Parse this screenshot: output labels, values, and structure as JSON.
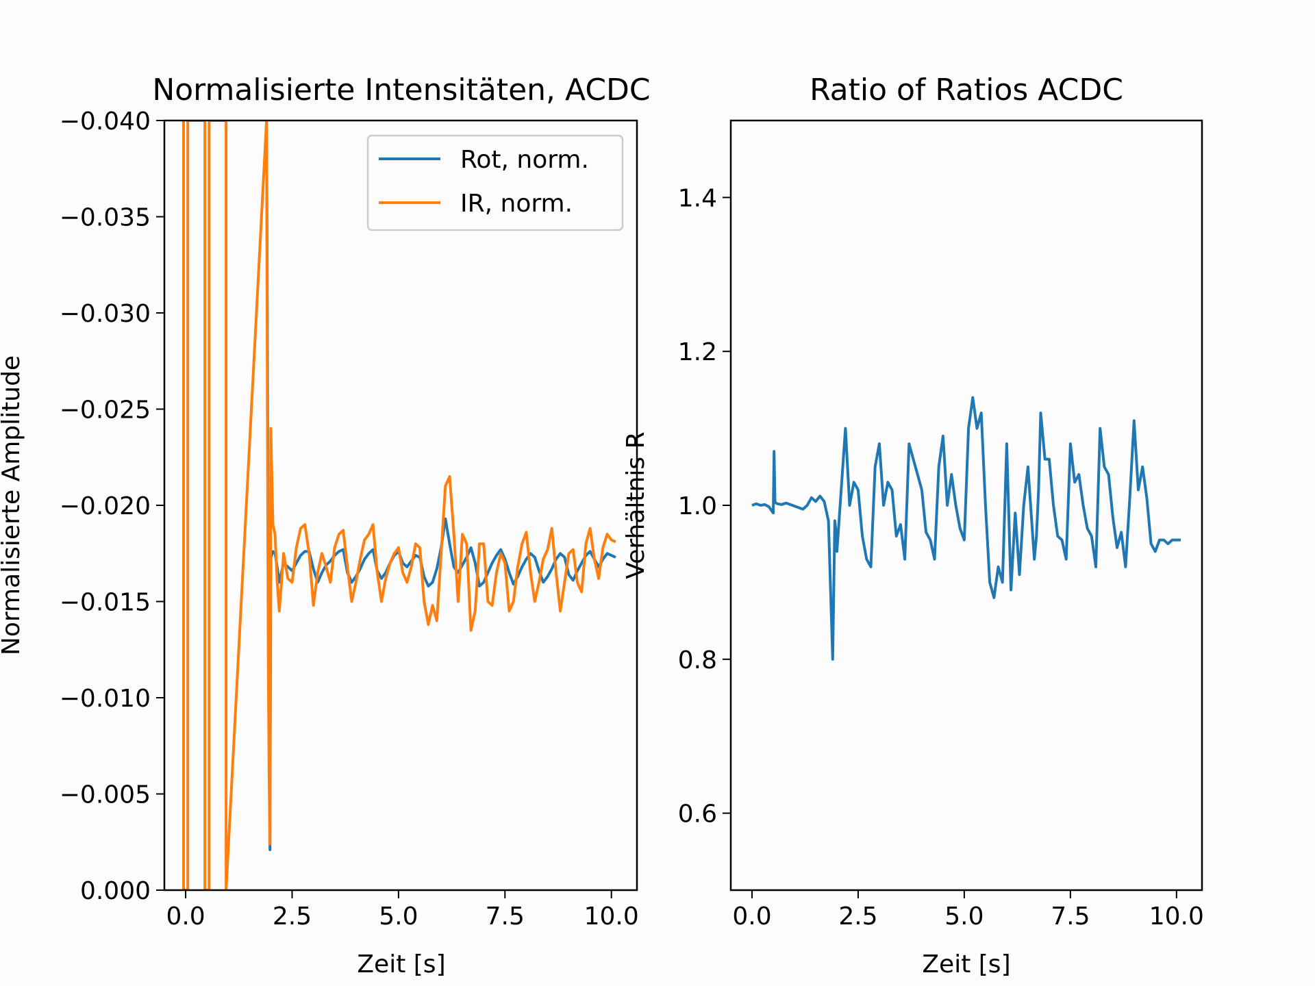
{
  "chart_data": [
    {
      "type": "line",
      "title": "Normalisierte Intensitäten, ACDC",
      "xlabel": "Zeit [s]",
      "ylabel": "Normalisierte Amplitude",
      "xlim": [
        -0.5,
        10.6
      ],
      "ylim": [
        0.0,
        -0.04
      ],
      "y_inverted": true,
      "grid": false,
      "legend": "top-right",
      "xticks": [
        0.0,
        2.5,
        5.0,
        7.5,
        10.0
      ],
      "xtick_labels": [
        "0.0",
        "2.5",
        "5.0",
        "7.5",
        "10.0"
      ],
      "yticks": [
        0.0,
        -0.005,
        -0.01,
        -0.015,
        -0.02,
        -0.025,
        -0.03,
        -0.035,
        -0.04
      ],
      "ytick_labels": [
        "0.000",
        "−0.005",
        "−0.010",
        "−0.015",
        "−0.020",
        "−0.025",
        "−0.030",
        "−0.035",
        "−0.040"
      ],
      "series": [
        {
          "name": "Rot, norm.",
          "color": "#1f77b4",
          "x": [
            1.9,
            1.92,
            1.94,
            1.96,
            1.98,
            2.0,
            2.05,
            2.1,
            2.15,
            2.2,
            2.3,
            2.4,
            2.5,
            2.6,
            2.7,
            2.8,
            2.9,
            3.0,
            3.1,
            3.2,
            3.3,
            3.4,
            3.5,
            3.6,
            3.7,
            3.8,
            3.9,
            4.0,
            4.1,
            4.2,
            4.3,
            4.4,
            4.5,
            4.6,
            4.7,
            4.8,
            4.9,
            5.0,
            5.1,
            5.2,
            5.3,
            5.4,
            5.5,
            5.6,
            5.7,
            5.8,
            5.9,
            6.0,
            6.1,
            6.2,
            6.3,
            6.4,
            6.5,
            6.6,
            6.7,
            6.8,
            6.9,
            7.0,
            7.1,
            7.2,
            7.3,
            7.4,
            7.5,
            7.6,
            7.7,
            7.8,
            7.9,
            8.0,
            8.1,
            8.2,
            8.3,
            8.4,
            8.5,
            8.6,
            8.7,
            8.8,
            8.9,
            9.0,
            9.1,
            9.2,
            9.3,
            9.4,
            9.5,
            9.6,
            9.7,
            9.8,
            9.9,
            10.0,
            10.1
          ],
          "values": [
            -0.0399,
            -0.03,
            -0.015,
            -0.008,
            -0.0021,
            -0.0173,
            -0.0176,
            -0.0175,
            -0.0168,
            -0.016,
            -0.017,
            -0.0168,
            -0.0166,
            -0.017,
            -0.0174,
            -0.0176,
            -0.0176,
            -0.0167,
            -0.016,
            -0.0165,
            -0.0169,
            -0.0171,
            -0.0174,
            -0.0176,
            -0.0177,
            -0.0165,
            -0.016,
            -0.0163,
            -0.0167,
            -0.0172,
            -0.0175,
            -0.0177,
            -0.0166,
            -0.0162,
            -0.0165,
            -0.017,
            -0.0174,
            -0.0176,
            -0.017,
            -0.0168,
            -0.0171,
            -0.0174,
            -0.0173,
            -0.0163,
            -0.0158,
            -0.016,
            -0.0167,
            -0.0178,
            -0.0193,
            -0.018,
            -0.0168,
            -0.0165,
            -0.0169,
            -0.0173,
            -0.0178,
            -0.017,
            -0.0158,
            -0.016,
            -0.0165,
            -0.017,
            -0.0174,
            -0.0177,
            -0.0172,
            -0.0165,
            -0.0159,
            -0.0163,
            -0.0168,
            -0.0172,
            -0.0175,
            -0.0173,
            -0.0166,
            -0.016,
            -0.0163,
            -0.0167,
            -0.0172,
            -0.0175,
            -0.0173,
            -0.0164,
            -0.0161,
            -0.0166,
            -0.017,
            -0.0174,
            -0.0176,
            -0.0172,
            -0.0168,
            -0.0172,
            -0.0175,
            -0.0174,
            -0.0173
          ]
        },
        {
          "name": "IR, norm.",
          "color": "#ff7f0e",
          "x": [
            -0.05,
            -0.05,
            0.05,
            0.05,
            0.45,
            0.45,
            0.55,
            0.55,
            0.95,
            0.95,
            1.9,
            1.92,
            1.94,
            1.96,
            1.98,
            2.0,
            2.05,
            2.1,
            2.15,
            2.2,
            2.3,
            2.4,
            2.5,
            2.6,
            2.7,
            2.8,
            2.9,
            3.0,
            3.1,
            3.2,
            3.3,
            3.4,
            3.5,
            3.6,
            3.7,
            3.8,
            3.9,
            4.0,
            4.1,
            4.2,
            4.3,
            4.4,
            4.5,
            4.6,
            4.7,
            4.8,
            4.9,
            5.0,
            5.1,
            5.2,
            5.3,
            5.4,
            5.5,
            5.6,
            5.7,
            5.8,
            5.9,
            6.0,
            6.1,
            6.2,
            6.3,
            6.4,
            6.5,
            6.6,
            6.7,
            6.8,
            6.9,
            7.0,
            7.1,
            7.2,
            7.3,
            7.4,
            7.5,
            7.6,
            7.7,
            7.8,
            7.9,
            8.0,
            8.1,
            8.2,
            8.3,
            8.4,
            8.5,
            8.6,
            8.7,
            8.8,
            8.9,
            9.0,
            9.1,
            9.2,
            9.3,
            9.4,
            9.5,
            9.6,
            9.7,
            9.8,
            9.9,
            10.0,
            10.1
          ],
          "values": [
            -0.04,
            0.0,
            0.0,
            -0.04,
            -0.04,
            0.0,
            0.0,
            -0.04,
            -0.04,
            0.0,
            -0.04,
            -0.025,
            -0.012,
            -0.006,
            -0.0024,
            -0.024,
            -0.019,
            -0.0185,
            -0.016,
            -0.0145,
            -0.0175,
            -0.0162,
            -0.016,
            -0.0178,
            -0.0188,
            -0.019,
            -0.0175,
            -0.0148,
            -0.0165,
            -0.0175,
            -0.0168,
            -0.016,
            -0.0178,
            -0.0185,
            -0.0187,
            -0.0168,
            -0.015,
            -0.016,
            -0.0172,
            -0.0182,
            -0.0185,
            -0.019,
            -0.0165,
            -0.015,
            -0.0162,
            -0.017,
            -0.0175,
            -0.0178,
            -0.0165,
            -0.016,
            -0.0168,
            -0.018,
            -0.0178,
            -0.015,
            -0.0138,
            -0.0148,
            -0.014,
            -0.0175,
            -0.021,
            -0.0215,
            -0.0185,
            -0.015,
            -0.0185,
            -0.018,
            -0.0135,
            -0.0145,
            -0.018,
            -0.018,
            -0.015,
            -0.0148,
            -0.0165,
            -0.0175,
            -0.017,
            -0.0145,
            -0.015,
            -0.0168,
            -0.018,
            -0.0186,
            -0.0165,
            -0.015,
            -0.016,
            -0.0172,
            -0.0177,
            -0.0188,
            -0.0165,
            -0.0145,
            -0.016,
            -0.0175,
            -0.0177,
            -0.016,
            -0.0155,
            -0.018,
            -0.0188,
            -0.0172,
            -0.0162,
            -0.0178,
            -0.0185,
            -0.0182,
            -0.0181
          ]
        }
      ]
    },
    {
      "type": "line",
      "title": "Ratio of Ratios ACDC",
      "xlabel": "Zeit [s]",
      "ylabel": "Verhältnis R",
      "xlim": [
        -0.5,
        10.6
      ],
      "ylim": [
        0.5,
        1.5
      ],
      "grid": false,
      "xticks": [
        0.0,
        2.5,
        5.0,
        7.5,
        10.0
      ],
      "xtick_labels": [
        "0.0",
        "2.5",
        "5.0",
        "7.5",
        "10.0"
      ],
      "yticks": [
        0.6,
        0.8,
        1.0,
        1.2,
        1.4
      ],
      "ytick_labels": [
        "0.6",
        "0.8",
        "1.0",
        "1.2",
        "1.4"
      ],
      "series": [
        {
          "color": "#1f77b4",
          "x": [
            0.0,
            0.1,
            0.2,
            0.3,
            0.4,
            0.5,
            0.52,
            0.54,
            0.56,
            0.6,
            0.7,
            0.8,
            0.9,
            1.0,
            1.1,
            1.2,
            1.3,
            1.4,
            1.5,
            1.6,
            1.7,
            1.8,
            1.9,
            1.95,
            1.97,
            1.99,
            2.0,
            2.1,
            2.2,
            2.3,
            2.4,
            2.5,
            2.6,
            2.7,
            2.8,
            2.9,
            3.0,
            3.1,
            3.2,
            3.3,
            3.4,
            3.5,
            3.6,
            3.7,
            3.8,
            3.9,
            4.0,
            4.1,
            4.2,
            4.3,
            4.4,
            4.5,
            4.6,
            4.7,
            4.8,
            4.9,
            5.0,
            5.1,
            5.2,
            5.3,
            5.4,
            5.5,
            5.6,
            5.7,
            5.8,
            5.9,
            6.0,
            6.1,
            6.2,
            6.3,
            6.4,
            6.5,
            6.6,
            6.65,
            6.7,
            6.75,
            6.8,
            6.9,
            7.0,
            7.1,
            7.2,
            7.3,
            7.4,
            7.5,
            7.6,
            7.7,
            7.8,
            7.9,
            8.0,
            8.1,
            8.2,
            8.3,
            8.4,
            8.5,
            8.6,
            8.7,
            8.8,
            8.9,
            9.0,
            9.1,
            9.2,
            9.3,
            9.4,
            9.5,
            9.6,
            9.7,
            9.8,
            9.9,
            10.0,
            10.1
          ],
          "values": [
            1.0,
            1.002,
            1.0,
            1.001,
            0.998,
            0.99,
            1.07,
            1.005,
            1.003,
            1.002,
            1.001,
            1.003,
            1.001,
            0.999,
            0.997,
            0.995,
            1.0,
            1.01,
            1.005,
            1.012,
            1.005,
            0.98,
            0.8,
            0.98,
            0.97,
            0.95,
            0.94,
            1.02,
            1.1,
            1.0,
            1.03,
            1.02,
            0.96,
            0.93,
            0.92,
            1.05,
            1.08,
            1.0,
            1.03,
            1.02,
            0.96,
            0.975,
            0.93,
            1.08,
            1.06,
            1.04,
            1.02,
            0.965,
            0.955,
            0.93,
            1.05,
            1.09,
            1.0,
            1.04,
            1.0,
            0.97,
            0.955,
            1.1,
            1.14,
            1.1,
            1.12,
            1.0,
            0.9,
            0.88,
            0.92,
            0.9,
            1.08,
            0.89,
            0.99,
            0.91,
            1.0,
            1.05,
            0.97,
            0.93,
            0.96,
            1.02,
            1.12,
            1.06,
            1.06,
            1.0,
            0.96,
            0.955,
            0.93,
            1.08,
            1.03,
            1.04,
            1.0,
            0.97,
            0.96,
            0.92,
            1.1,
            1.05,
            1.04,
            0.985,
            0.945,
            0.965,
            0.92,
            1.01,
            1.11,
            1.02,
            1.05,
            1.01,
            0.95,
            0.94,
            0.955,
            0.955,
            0.95,
            0.955,
            0.955,
            0.955
          ]
        }
      ]
    }
  ]
}
